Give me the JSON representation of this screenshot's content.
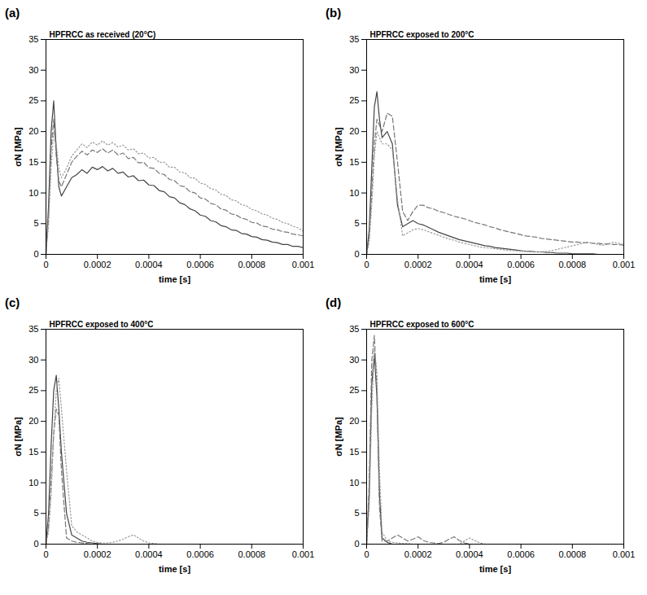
{
  "chart_data": [
    {
      "type": "line",
      "panel": "(a)",
      "title": "HPFRCC as received (20°C)",
      "x_label": "time [s]",
      "y_label": "σN [MPa]",
      "xlim": [
        0,
        0.001
      ],
      "xticks": [
        0,
        0.0002,
        0.0004,
        0.0006,
        0.0008,
        0.001
      ],
      "ylim": [
        0,
        35
      ],
      "yticks": [
        0,
        5,
        10,
        15,
        20,
        25,
        30,
        35
      ],
      "x": [
        0,
        1e-05,
        2e-05,
        3e-05,
        4e-05,
        5e-05,
        6e-05,
        8e-05,
        0.0001,
        0.00012,
        0.00014,
        0.00016,
        0.00018,
        0.0002,
        0.00022,
        0.00024,
        0.00026,
        0.00028,
        0.0003,
        0.00032,
        0.00034,
        0.00036,
        0.00038,
        0.0004,
        0.00042,
        0.00044,
        0.00046,
        0.00048,
        0.0005,
        0.00052,
        0.00054,
        0.00056,
        0.00058,
        0.0006,
        0.00062,
        0.00064,
        0.00066,
        0.00068,
        0.0007,
        0.00072,
        0.00074,
        0.00076,
        0.00078,
        0.0008,
        0.00082,
        0.00084,
        0.00086,
        0.00088,
        0.0009,
        0.00092,
        0.00094,
        0.00096,
        0.00098,
        0.001
      ],
      "series": [
        {
          "color": "#444444",
          "line_style": "solid",
          "values": [
            0,
            8,
            20,
            25,
            17,
            11,
            9.5,
            11,
            12.5,
            13,
            13.8,
            13.2,
            14.2,
            13.8,
            14.3,
            13.6,
            14,
            13.2,
            13.4,
            12.6,
            12.8,
            12,
            12.1,
            11.3,
            11.2,
            10.4,
            10.2,
            9.4,
            9.2,
            8.4,
            8.1,
            7.4,
            7.1,
            6.4,
            6.2,
            5.5,
            5.3,
            4.7,
            4.5,
            4,
            3.9,
            3.4,
            3.3,
            2.9,
            2.8,
            2.4,
            2.3,
            2,
            1.9,
            1.6,
            1.6,
            1.3,
            1.3,
            1.1
          ]
        },
        {
          "color": "#777777",
          "line_style": "dashed",
          "values": [
            0,
            6,
            17,
            22,
            16,
            12,
            11,
            13,
            15,
            16,
            16.8,
            16.2,
            17,
            16.6,
            17.2,
            16.5,
            17,
            16.2,
            16.5,
            15.6,
            15.8,
            14.9,
            15,
            14.1,
            14,
            13.2,
            13,
            12.2,
            12,
            11.2,
            11,
            10.2,
            10,
            9.2,
            9,
            8.3,
            8.1,
            7.4,
            7.2,
            6.6,
            6.4,
            5.9,
            5.7,
            5.2,
            5.1,
            4.6,
            4.5,
            4.1,
            4,
            3.7,
            3.6,
            3.3,
            3.2,
            3
          ]
        },
        {
          "color": "#999999",
          "line_style": "dotted",
          "values": [
            0,
            5,
            14,
            20,
            18,
            14,
            12.5,
            14,
            16,
            17,
            18,
            17.4,
            18.3,
            17.8,
            18.5,
            17.8,
            18.2,
            17.5,
            17.8,
            17,
            17.2,
            16.4,
            16.5,
            15.7,
            15.8,
            15,
            15,
            14.2,
            14.2,
            13.4,
            13.3,
            12.5,
            12.4,
            11.6,
            11.4,
            10.7,
            10.5,
            9.8,
            9.6,
            8.9,
            8.7,
            8.1,
            7.9,
            7.3,
            7.1,
            6.6,
            6.4,
            5.9,
            5.7,
            5.2,
            5,
            4.6,
            4.3,
            3.8
          ]
        }
      ]
    },
    {
      "type": "line",
      "panel": "(b)",
      "title": "HPFRCC exposed to 200°C",
      "x_label": "time [s]",
      "y_label": "σN [MPa]",
      "xlim": [
        0,
        0.001
      ],
      "xticks": [
        0,
        0.0002,
        0.0004,
        0.0006,
        0.0008,
        0.001
      ],
      "ylim": [
        0,
        35
      ],
      "yticks": [
        0,
        5,
        10,
        15,
        20,
        25,
        30,
        35
      ],
      "x": [
        0,
        1e-05,
        2e-05,
        3e-05,
        4e-05,
        5e-05,
        6e-05,
        8e-05,
        0.0001,
        0.00012,
        0.00014,
        0.00016,
        0.00018,
        0.0002,
        0.00022,
        0.00024,
        0.00026,
        0.00028,
        0.0003,
        0.00032,
        0.00034,
        0.00036,
        0.00038,
        0.0004,
        0.00042,
        0.00044,
        0.00046,
        0.00048,
        0.0005,
        0.00052,
        0.00054,
        0.00056,
        0.00058,
        0.0006,
        0.00062,
        0.00064,
        0.00066,
        0.00068,
        0.0007,
        0.00072,
        0.00074,
        0.00076,
        0.00078,
        0.0008,
        0.00082,
        0.00084,
        0.00086,
        0.00088,
        0.0009,
        0.00092,
        0.00094,
        0.00096,
        0.00098,
        0.001
      ],
      "series": [
        {
          "color": "#444444",
          "line_style": "solid",
          "values": [
            0,
            4,
            14,
            24,
            26.5,
            22,
            19,
            20,
            18,
            8,
            4.5,
            5,
            5.5,
            5,
            4.8,
            4.4,
            4,
            3.6,
            3.3,
            3,
            2.7,
            2.4,
            2.2,
            2,
            1.8,
            1.6,
            1.4,
            1.3,
            1.1,
            1,
            0.9,
            0.8,
            0.7,
            0.6,
            0.5,
            0.5,
            0.4,
            0.4,
            0.3,
            0.3,
            0.2,
            0.2,
            0.2,
            0.1,
            0.1,
            0.1,
            0.1,
            0.1,
            0,
            0,
            0,
            0,
            0,
            0
          ]
        },
        {
          "color": "#777777",
          "line_style": "dashed",
          "values": [
            0,
            3,
            10,
            18,
            22,
            21,
            20,
            23,
            22.5,
            15,
            7,
            5.5,
            7,
            8,
            8,
            7.6,
            7.4,
            7,
            6.8,
            6.5,
            6.2,
            6,
            5.8,
            5.5,
            5.2,
            5,
            4.8,
            4.5,
            4.3,
            4,
            3.8,
            3.6,
            3.4,
            3.2,
            3,
            2.9,
            2.8,
            2.6,
            2.5,
            2.4,
            2.3,
            2.2,
            2.1,
            2,
            2,
            1.9,
            1.9,
            1.8,
            1.8,
            1.7,
            1.7,
            1.6,
            1.6,
            1.5
          ]
        },
        {
          "color": "#999999",
          "line_style": "dotted",
          "values": [
            0,
            2,
            8,
            16,
            20,
            19,
            18,
            18,
            17,
            9,
            3,
            3.5,
            4,
            4.2,
            4,
            3.7,
            3.4,
            3.1,
            2.8,
            2.5,
            2.3,
            2,
            1.8,
            1.6,
            1.4,
            1.2,
            1.1,
            1,
            0.9,
            0.8,
            0.7,
            0.6,
            0.6,
            0.5,
            0.5,
            0.4,
            0.4,
            0.4,
            0.5,
            0.6,
            0.8,
            1,
            1.2,
            1.4,
            1.6,
            1.8,
            2,
            1.8,
            1.6,
            1.5,
            1.7,
            2,
            1.8,
            1.6
          ]
        }
      ]
    },
    {
      "type": "line",
      "panel": "(c)",
      "title": "HPFRCC exposed to 400°C",
      "x_label": "time [s]",
      "y_label": "σN [MPa]",
      "xlim": [
        0,
        0.001
      ],
      "xticks": [
        0,
        0.0002,
        0.0004,
        0.0006,
        0.0008,
        0.001
      ],
      "ylim": [
        0,
        35
      ],
      "yticks": [
        0,
        5,
        10,
        15,
        20,
        25,
        30,
        35
      ],
      "x": [
        0,
        1e-05,
        2e-05,
        3e-05,
        4e-05,
        5e-05,
        6e-05,
        8e-05,
        0.0001,
        0.00012,
        0.00014,
        0.00016,
        0.00018,
        0.0002,
        0.00022,
        0.00024,
        0.00026,
        0.00028,
        0.0003,
        0.00032,
        0.00034,
        0.00036,
        0.00038,
        0.0004,
        0.00042,
        0.00044,
        0.00046,
        0.00048,
        0.0005,
        0.00052,
        0.00054,
        0.00056,
        0.00058,
        0.0006,
        0.00062,
        0.00064,
        0.00066,
        0.00068,
        0.0007,
        0.00072,
        0.00074,
        0.00076,
        0.00078,
        0.0008,
        0.00082,
        0.00084,
        0.00086,
        0.00088,
        0.0009,
        0.00092,
        0.00094,
        0.00096,
        0.00098,
        0.001
      ],
      "series": [
        {
          "color": "#444444",
          "line_style": "solid",
          "values": [
            0,
            5,
            16,
            25,
            27.5,
            22,
            15,
            5,
            1.5,
            1,
            0.5,
            0.3,
            0.2,
            0.1,
            0,
            0,
            0,
            0,
            0,
            0,
            0,
            0,
            0,
            0,
            0,
            0,
            0,
            0,
            0,
            0,
            0,
            0,
            0,
            0,
            0,
            0,
            0,
            0,
            0,
            0,
            0,
            0,
            0,
            0,
            0,
            0,
            0,
            0,
            0,
            0,
            0,
            0,
            0,
            0
          ]
        },
        {
          "color": "#777777",
          "line_style": "dashed",
          "values": [
            0,
            3,
            10,
            18,
            22,
            21,
            12,
            1,
            0.5,
            0.3,
            0.2,
            0.1,
            0,
            0,
            0,
            0,
            0,
            0,
            0,
            0,
            0,
            0,
            0,
            0,
            0,
            0,
            0,
            0,
            0,
            0,
            0,
            0,
            0,
            0,
            0,
            0,
            0,
            0,
            0,
            0,
            0,
            0,
            0,
            0,
            0,
            0,
            0,
            0,
            0,
            0,
            0,
            0,
            0,
            0
          ]
        },
        {
          "color": "#999999",
          "line_style": "dotted",
          "values": [
            0,
            2,
            8,
            18,
            25,
            27,
            22,
            12,
            3,
            2,
            1.5,
            1,
            0.5,
            0.3,
            0.2,
            0.2,
            0.3,
            0.5,
            0.8,
            1.2,
            1.5,
            1,
            0.5,
            0.2,
            0.1,
            0,
            0,
            0,
            0,
            0,
            0,
            0,
            0,
            0,
            0,
            0,
            0,
            0,
            0,
            0,
            0,
            0,
            0,
            0,
            0,
            0,
            0,
            0,
            0,
            0,
            0,
            0,
            0,
            0
          ]
        }
      ]
    },
    {
      "type": "line",
      "panel": "(d)",
      "title": "HPFRCC exposed to 600°C",
      "x_label": "time [s]",
      "y_label": "σN [MPa]",
      "xlim": [
        0,
        0.001
      ],
      "xticks": [
        0,
        0.0002,
        0.0004,
        0.0006,
        0.0008,
        0.001
      ],
      "ylim": [
        0,
        35
      ],
      "yticks": [
        0,
        5,
        10,
        15,
        20,
        25,
        30,
        35
      ],
      "x": [
        0,
        1e-05,
        2e-05,
        3e-05,
        4e-05,
        5e-05,
        6e-05,
        8e-05,
        0.0001,
        0.00012,
        0.00014,
        0.00016,
        0.00018,
        0.0002,
        0.00022,
        0.00024,
        0.00026,
        0.00028,
        0.0003,
        0.00032,
        0.00034,
        0.00036,
        0.00038,
        0.0004,
        0.00042,
        0.00044,
        0.00046,
        0.00048,
        0.0005,
        0.00052,
        0.00054,
        0.00056,
        0.00058,
        0.0006,
        0.00062,
        0.00064,
        0.00066,
        0.00068,
        0.0007,
        0.00072,
        0.00074,
        0.00076,
        0.00078,
        0.0008,
        0.00082,
        0.00084,
        0.00086,
        0.00088,
        0.0009,
        0.00092,
        0.00094,
        0.00096,
        0.00098,
        0.001
      ],
      "series": [
        {
          "color": "#444444",
          "line_style": "solid",
          "values": [
            0,
            8,
            26,
            31,
            24,
            8,
            1,
            0.3,
            0,
            0,
            0,
            0,
            0,
            0,
            0,
            0,
            0,
            0,
            0,
            0,
            0,
            0,
            0,
            0,
            0,
            0,
            0,
            0,
            0,
            0,
            0,
            0,
            0,
            0,
            0,
            0,
            0,
            0,
            0,
            0,
            0,
            0,
            0,
            0,
            0,
            0,
            0,
            0,
            0,
            0,
            0,
            0,
            0,
            0
          ]
        },
        {
          "color": "#777777",
          "line_style": "dashed",
          "values": [
            0,
            10,
            30,
            34,
            25,
            6,
            0.5,
            0.5,
            1,
            1.5,
            1,
            0.5,
            0.8,
            1.2,
            0.6,
            0.3,
            0.2,
            0.1,
            0.3,
            0.8,
            1.2,
            0.6,
            0.2,
            0,
            0,
            0,
            0,
            0,
            0,
            0,
            0,
            0,
            0,
            0,
            0,
            0,
            0,
            0,
            0,
            0,
            0,
            0,
            0,
            0,
            0,
            0,
            0,
            0,
            0,
            0,
            0,
            0,
            0,
            0
          ]
        },
        {
          "color": "#999999",
          "line_style": "dotted",
          "values": [
            0,
            6,
            22,
            32,
            28,
            12,
            2,
            0.5,
            0.3,
            0.2,
            0.1,
            0.1,
            0,
            0,
            0,
            0,
            0,
            0,
            0,
            0,
            0,
            0,
            0.5,
            1,
            0.6,
            0.2,
            0,
            0,
            0,
            0,
            0,
            0,
            0,
            0,
            0,
            0,
            0,
            0,
            0,
            0,
            0,
            0,
            0,
            0,
            0,
            0,
            0,
            0,
            0,
            0,
            0,
            0,
            0,
            0
          ]
        }
      ]
    }
  ]
}
